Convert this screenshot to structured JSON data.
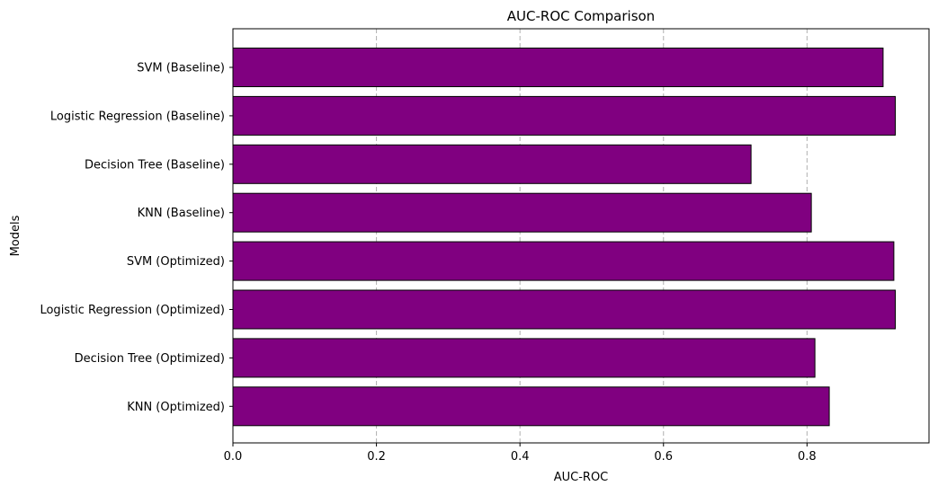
{
  "chart_data": {
    "type": "bar",
    "orientation": "horizontal",
    "title": "AUC-ROC Comparison",
    "xlabel": "AUC-ROC",
    "ylabel": "Models",
    "xlim": [
      0,
      0.97
    ],
    "xticks": [
      0.0,
      0.2,
      0.4,
      0.6,
      0.8
    ],
    "xtick_labels": [
      "0.0",
      "0.2",
      "0.4",
      "0.6",
      "0.8"
    ],
    "grid": "vertical dashed gridlines",
    "legend": "none",
    "bar_color": "#800080",
    "bar_edge_color": "#000000",
    "categories": [
      "SVM (Baseline)",
      "Logistic Regression (Baseline)",
      "Decision Tree (Baseline)",
      "KNN (Baseline)",
      "SVM (Optimized)",
      "Logistic Regression (Optimized)",
      "Decision Tree (Optimized)",
      "KNN (Optimized)"
    ],
    "values": [
      0.906,
      0.923,
      0.722,
      0.806,
      0.921,
      0.923,
      0.811,
      0.831
    ]
  }
}
